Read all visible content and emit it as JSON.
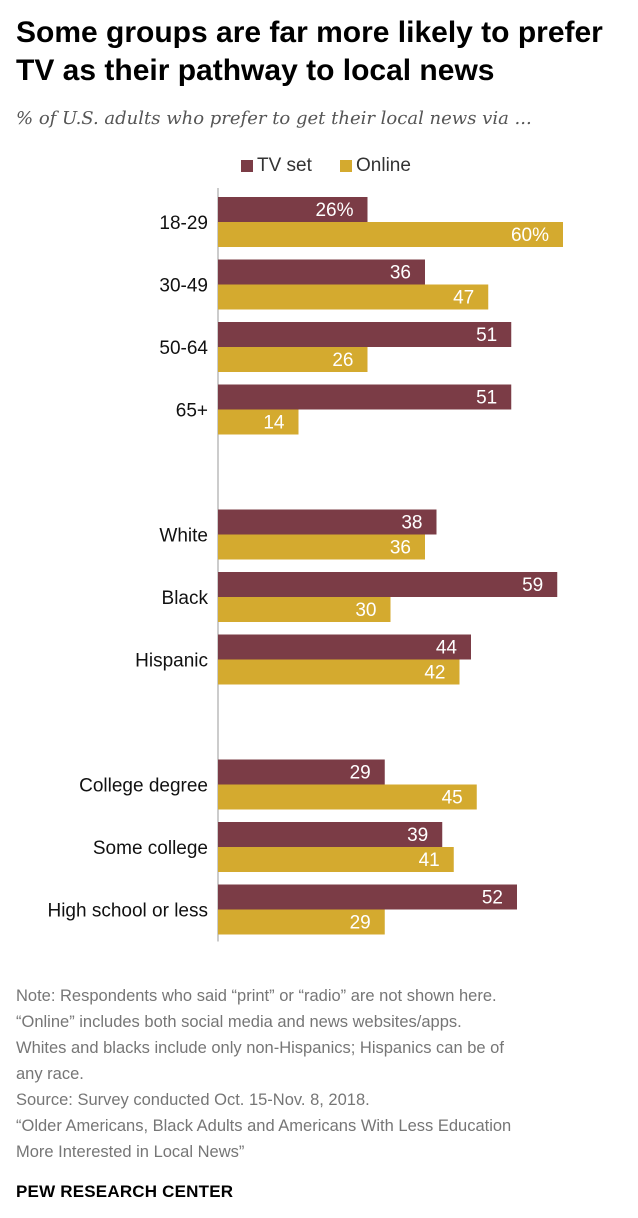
{
  "title": "Some groups are far more likely to prefer TV as their pathway to local news",
  "subtitle": "% of U.S. adults who prefer to get their local news via ...",
  "colors": {
    "tv": "#7b3c46",
    "online": "#d4aa2f",
    "label_text": "#ffffff",
    "axis": "#cccccc"
  },
  "chart_data": {
    "type": "bar",
    "orientation": "horizontal",
    "categories": [
      "18-29",
      "30-49",
      "50-64",
      "65+",
      "White",
      "Black",
      "Hispanic",
      "College degree",
      "Some college",
      "High school or less"
    ],
    "groups": [
      [
        "18-29",
        "30-49",
        "50-64",
        "65+"
      ],
      [
        "White",
        "Black",
        "Hispanic"
      ],
      [
        "College degree",
        "Some college",
        "High school or less"
      ]
    ],
    "series": [
      {
        "name": "TV set",
        "values": [
          26,
          36,
          51,
          51,
          38,
          59,
          44,
          29,
          39,
          52
        ],
        "labels": [
          "26%",
          "36",
          "51",
          "51",
          "38",
          "59",
          "44",
          "29",
          "39",
          "52"
        ]
      },
      {
        "name": "Online",
        "values": [
          60,
          47,
          26,
          14,
          36,
          30,
          42,
          45,
          41,
          29
        ],
        "labels": [
          "60%",
          "47",
          "26",
          "14",
          "36",
          "30",
          "42",
          "45",
          "41",
          "29"
        ]
      }
    ],
    "xlim": [
      0,
      61
    ],
    "legend": [
      "TV set",
      "Online"
    ],
    "legend_position": "top"
  },
  "notes": [
    "Note: Respondents who said “print” or “radio” are not shown here.",
    "“Online” includes both social media and news websites/apps.",
    "Whites and blacks include only non-Hispanics; Hispanics can be of",
    "any race.",
    "Source: Survey conducted Oct. 15-Nov. 8, 2018.",
    "“Older Americans, Black Adults and Americans With Less Education",
    "More Interested in Local News”"
  ],
  "source_brand": "PEW RESEARCH CENTER"
}
